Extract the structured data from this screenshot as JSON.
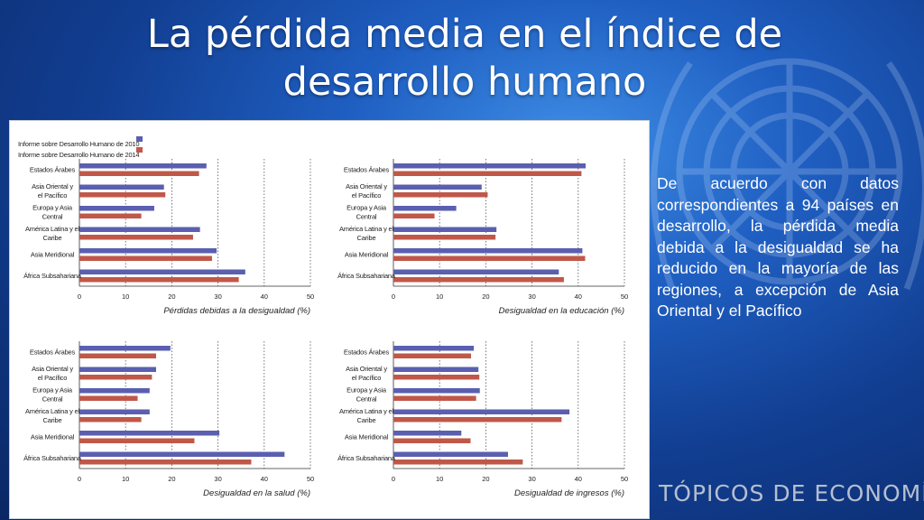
{
  "title": "La pérdida media en el índice de desarrollo humano",
  "legend": [
    {
      "label": "Informe sobre Desarrollo Humano de 2010",
      "color": "#5a5fb0"
    },
    {
      "label": "Informe sobre Desarrollo Humano de 2014",
      "color": "#c0584a"
    }
  ],
  "side_text": "De acuerdo con datos correspondientes a 94 países en desarrollo, la pérdida media debida a la desigualdad se ha reducido en la mayoría de las regiones, a excepción de Asia Oriental y el Pacífico",
  "brand": "TÓPICOS DE ECONOMÍA",
  "emblem_icon": "un-emblem-icon",
  "chart_data": [
    {
      "type": "bar",
      "orientation": "horizontal",
      "categories": [
        "Estados Árabes",
        "Asia Oriental y el Pacífico",
        "Europa y Asia Central",
        "América Latina y el Caribe",
        "Asia Meridional",
        "África Subsahariana"
      ],
      "category_lines": [
        [
          "Estados Árabes"
        ],
        [
          "Asia Oriental y",
          "el Pacífico"
        ],
        [
          "Europa y Asia",
          "Central"
        ],
        [
          "América Latina y el",
          "Caribe"
        ],
        [
          "Asia Meridional"
        ],
        [
          "África Subsahariana"
        ]
      ],
      "series": [
        {
          "name": "Informe sobre Desarrollo Humano de 2010",
          "values": [
            27.5,
            18.3,
            16.2,
            26.1,
            29.7,
            35.9
          ]
        },
        {
          "name": "Informe sobre Desarrollo Humano de 2014",
          "values": [
            25.9,
            18.6,
            13.4,
            24.6,
            28.7,
            34.5
          ]
        }
      ],
      "xlabel": "Pérdidas debidas a la desigualdad (%)",
      "xlim": [
        0,
        50
      ],
      "xticks": [
        0,
        10,
        20,
        30,
        40,
        50
      ],
      "grid": "vertical dotted"
    },
    {
      "type": "bar",
      "orientation": "horizontal",
      "categories": [
        "Estados Árabes",
        "Asia Oriental y el Pacífico",
        "Europa y Asia Central",
        "América Latina y el Caribe",
        "Asia Meridional",
        "África Subsahariana"
      ],
      "category_lines": [
        [
          "Estados Árabes"
        ],
        [
          "Asia Oriental y",
          "el Pacífico"
        ],
        [
          "Europa y Asia",
          "Central"
        ],
        [
          "América Latina y el",
          "Caribe"
        ],
        [
          "Asia Meridional"
        ],
        [
          "África Subsahariana"
        ]
      ],
      "series": [
        {
          "name": "Informe sobre Desarrollo Humano de 2010",
          "values": [
            41.6,
            19.1,
            13.6,
            22.3,
            40.9,
            35.8
          ]
        },
        {
          "name": "Informe sobre Desarrollo Humano de 2014",
          "values": [
            40.7,
            20.4,
            8.9,
            22.1,
            41.5,
            36.9
          ]
        }
      ],
      "xlabel": "Desigualdad en la educación (%)",
      "xlim": [
        0,
        50
      ],
      "xticks": [
        0,
        10,
        20,
        30,
        40,
        50
      ],
      "grid": "vertical dotted"
    },
    {
      "type": "bar",
      "orientation": "horizontal",
      "categories": [
        "Estados Árabes",
        "Asia Oriental y el Pacífico",
        "Europa y Asia Central",
        "América Latina y el Caribe",
        "Asia Meridional",
        "África Subsahariana"
      ],
      "category_lines": [
        [
          "Estados Árabes"
        ],
        [
          "Asia Oriental y",
          "el Pacífico"
        ],
        [
          "Europa y Asia",
          "Central"
        ],
        [
          "América Latina y el",
          "Caribe"
        ],
        [
          "Asia Meridional"
        ],
        [
          "África Subsahariana"
        ]
      ],
      "series": [
        {
          "name": "Informe sobre Desarrollo Humano de 2010",
          "values": [
            19.7,
            16.6,
            15.2,
            15.2,
            30.3,
            44.4
          ]
        },
        {
          "name": "Informe sobre Desarrollo Humano de 2014",
          "values": [
            16.6,
            15.7,
            12.6,
            13.4,
            24.9,
            37.2
          ]
        }
      ],
      "xlabel": "Desigualdad en la salud (%)",
      "xlim": [
        0,
        50
      ],
      "xticks": [
        0,
        10,
        20,
        30,
        40,
        50
      ],
      "grid": "vertical dotted"
    },
    {
      "type": "bar",
      "orientation": "horizontal",
      "categories": [
        "Estados Árabes",
        "Asia Oriental y el Pacífico",
        "Europa y Asia Central",
        "América Latina y el Caribe",
        "Asia Meridional",
        "África Subsahariana"
      ],
      "category_lines": [
        [
          "Estados Árabes"
        ],
        [
          "Asia Oriental y",
          "el Pacífico"
        ],
        [
          "Europa y Asia",
          "Central"
        ],
        [
          "América Latina y el",
          "Caribe"
        ],
        [
          "Asia Meridional"
        ],
        [
          "África Subsahariana"
        ]
      ],
      "series": [
        {
          "name": "Informe sobre Desarrollo Humano de 2010",
          "values": [
            17.4,
            18.4,
            18.7,
            38.1,
            14.7,
            24.8
          ]
        },
        {
          "name": "Informe sobre Desarrollo Humano de 2014",
          "values": [
            16.8,
            18.6,
            17.9,
            36.4,
            16.7,
            28.0
          ]
        }
      ],
      "xlabel": "Desigualdad de ingresos (%)",
      "xlim": [
        0,
        50
      ],
      "xticks": [
        0,
        10,
        20,
        30,
        40,
        50
      ],
      "grid": "vertical dotted"
    }
  ]
}
